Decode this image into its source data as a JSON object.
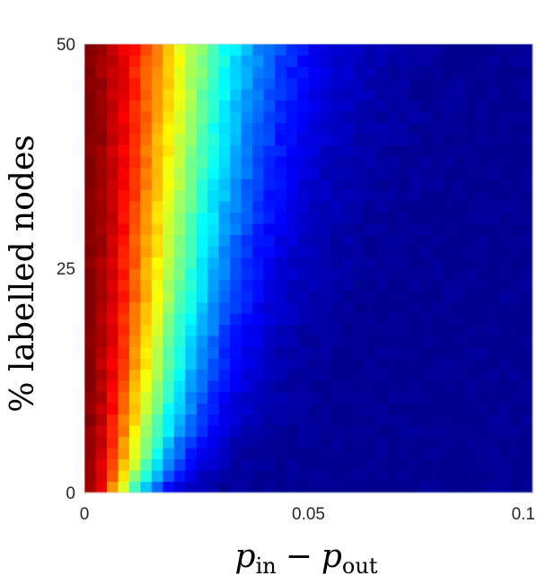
{
  "chart_data": {
    "type": "heatmap",
    "title": "",
    "xlabel": {
      "var": "p",
      "sub1": "in",
      "op": "−",
      "sub2": "out"
    },
    "ylabel": "% labelled nodes",
    "x_range": [
      0,
      0.1
    ],
    "y_range": [
      0,
      50
    ],
    "x_ticks": [
      {
        "value": 0,
        "label": "0"
      },
      {
        "value": 0.05,
        "label": "0.05"
      },
      {
        "value": 0.1,
        "label": "0.1"
      }
    ],
    "y_ticks": [
      {
        "value": 0,
        "label": "0"
      },
      {
        "value": 25,
        "label": "25"
      },
      {
        "value": 50,
        "label": "50"
      }
    ],
    "grid": false,
    "colormap": "jet",
    "color_range": [
      0,
      1
    ],
    "n_x_cells": 40,
    "n_y_cells": 40,
    "intensity_model": {
      "note_free": true,
      "decay_base": 0.0108,
      "decay_scale": 0.022,
      "decay_exponent": 0.55,
      "saturation_at_min": 1.0,
      "saturation_slope": 0.08
    }
  },
  "colors": {
    "jet_stops": [
      "#00008f",
      "#0000ff",
      "#00ffff",
      "#ffff00",
      "#ff0000",
      "#800000"
    ],
    "axis": "#262626",
    "background": "#ffffff"
  }
}
